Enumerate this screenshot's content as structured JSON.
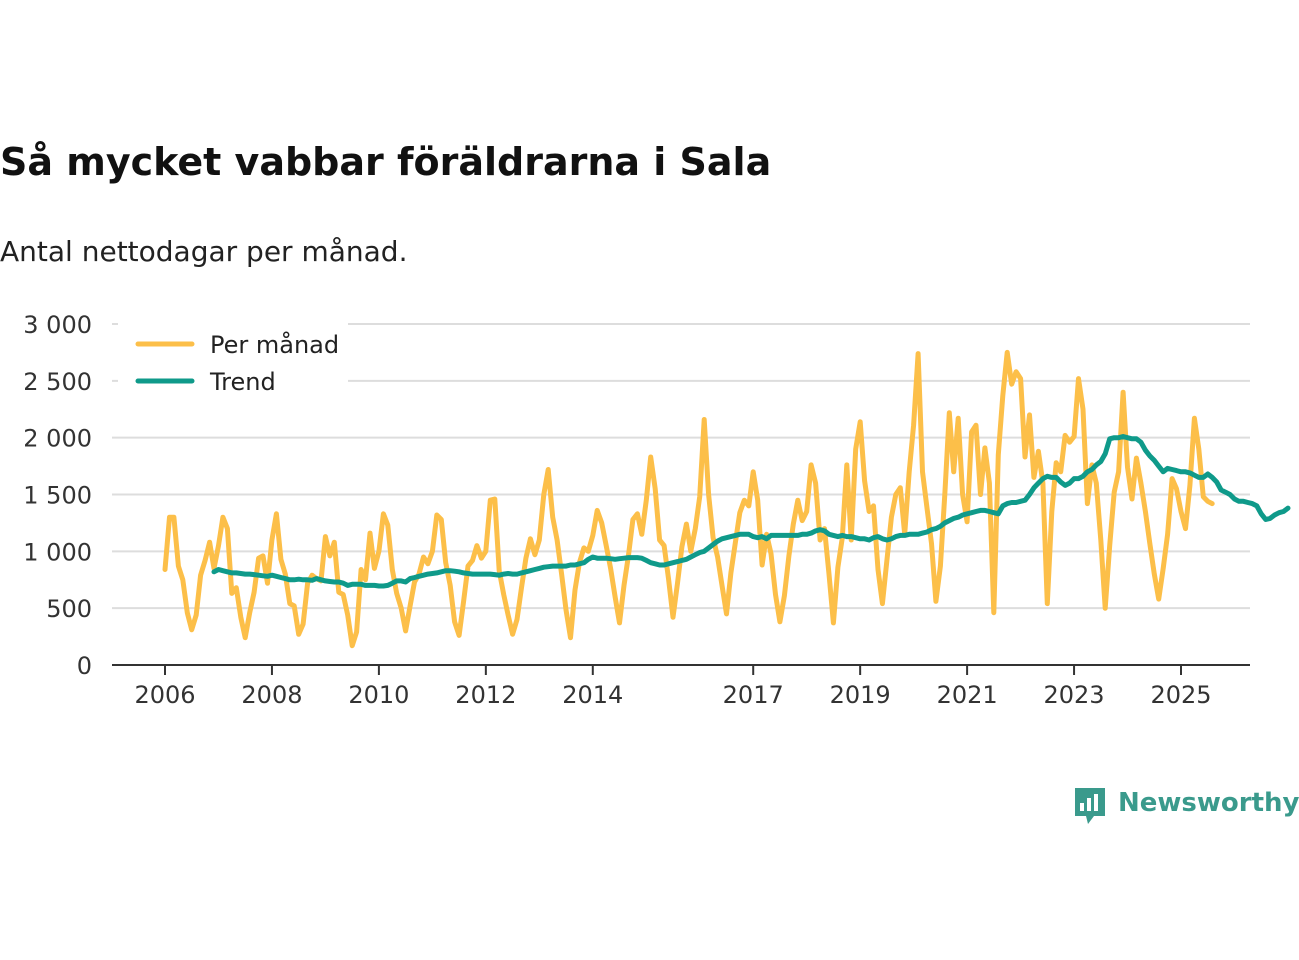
{
  "title": "Så mycket vabbar föräldrarna i Sala",
  "subtitle": "Antal nettodagar per månad.",
  "brand": {
    "name": "Newsworthy"
  },
  "colors": {
    "monthly": "#fcbf49",
    "trend": "#0f9a8a",
    "grid": "#dddddd",
    "axis": "#333333"
  },
  "chart_data": {
    "type": "line",
    "title": "Så mycket vabbar föräldrarna i Sala",
    "subtitle": "Antal nettodagar per månad.",
    "xlabel": "",
    "ylabel": "",
    "xlim": [
      2006.0,
      2025.5
    ],
    "ylim": [
      0,
      3000
    ],
    "x_ticks": [
      2006,
      2008,
      2010,
      2012,
      2014,
      2017,
      2019,
      2021,
      2023,
      2025
    ],
    "y_ticks": [
      {
        "value": 0,
        "label": "0"
      },
      {
        "value": 500,
        "label": "500"
      },
      {
        "value": 1000,
        "label": "1 000"
      },
      {
        "value": 1500,
        "label": "1 500"
      },
      {
        "value": 2000,
        "label": "2 000"
      },
      {
        "value": 2500,
        "label": "2 500"
      },
      {
        "value": 3000,
        "label": "3 000"
      }
    ],
    "legend": {
      "position": "top-left",
      "entries": [
        "Per månad",
        "Trend"
      ]
    },
    "series": [
      {
        "name": "Per månad",
        "start": 2006.0,
        "step_months": 1,
        "values": [
          840,
          1300,
          1300,
          870,
          750,
          460,
          310,
          440,
          790,
          920,
          1080,
          850,
          1050,
          1300,
          1200,
          630,
          680,
          420,
          240,
          460,
          640,
          940,
          960,
          720,
          1100,
          1330,
          930,
          800,
          540,
          520,
          270,
          360,
          720,
          790,
          760,
          740,
          1130,
          960,
          1080,
          640,
          620,
          440,
          170,
          290,
          840,
          750,
          1160,
          850,
          1000,
          1330,
          1230,
          840,
          630,
          500,
          300,
          520,
          730,
          800,
          950,
          890,
          1000,
          1320,
          1280,
          900,
          700,
          380,
          260,
          560,
          870,
          920,
          1050,
          940,
          1000,
          1450,
          1460,
          830,
          620,
          440,
          270,
          400,
          680,
          940,
          1110,
          970,
          1100,
          1500,
          1720,
          1300,
          1100,
          800,
          480,
          240,
          660,
          900,
          1030,
          1000,
          1140,
          1360,
          1250,
          1050,
          850,
          600,
          370,
          700,
          960,
          1280,
          1330,
          1150,
          1450,
          1830,
          1550,
          1100,
          1050,
          760,
          420,
          720,
          1040,
          1240,
          1000,
          1200,
          1480,
          2160,
          1500,
          1120,
          950,
          700,
          450,
          810,
          1080,
          1340,
          1450,
          1400,
          1700,
          1450,
          880,
          1150,
          980,
          620,
          380,
          610,
          960,
          1240,
          1450,
          1270,
          1350,
          1760,
          1600,
          1100,
          1200,
          800,
          370,
          860,
          1120,
          1760,
          1100,
          1900,
          2140,
          1620,
          1350,
          1400,
          840,
          540,
          920,
          1300,
          1500,
          1560,
          1150,
          1700,
          2110,
          2740,
          1700,
          1380,
          1070,
          560,
          870,
          1500,
          2220,
          1700,
          2170,
          1500,
          1260,
          2050,
          2110,
          1500,
          1910,
          1600,
          460,
          1850,
          2370,
          2750,
          2470,
          2580,
          2520,
          1830,
          2200,
          1650,
          1880,
          1600,
          540,
          1350,
          1780,
          1700,
          2020,
          1960,
          2010,
          2520,
          2250,
          1420,
          1760,
          1600,
          1100,
          500,
          1050,
          1520,
          1700,
          2400,
          1740,
          1460,
          1820,
          1600,
          1350,
          1070,
          800,
          580,
          850,
          1150,
          1640,
          1550,
          1350,
          1200,
          1580,
          2170,
          1900,
          1480,
          1440,
          1420
        ]
      },
      {
        "name": "Trend",
        "start": 2006.917,
        "step_months": 1,
        "values": [
          820,
          840,
          830,
          820,
          810,
          810,
          805,
          800,
          800,
          795,
          790,
          785,
          780,
          790,
          780,
          770,
          760,
          750,
          750,
          755,
          750,
          750,
          745,
          760,
          750,
          740,
          735,
          730,
          730,
          720,
          700,
          710,
          710,
          710,
          700,
          700,
          700,
          695,
          695,
          700,
          720,
          740,
          740,
          730,
          760,
          770,
          780,
          790,
          800,
          805,
          810,
          820,
          830,
          830,
          825,
          820,
          810,
          805,
          800,
          800,
          800,
          800,
          800,
          795,
          790,
          800,
          805,
          800,
          800,
          810,
          820,
          830,
          840,
          850,
          860,
          865,
          870,
          870,
          870,
          870,
          880,
          880,
          890,
          900,
          930,
          950,
          940,
          940,
          940,
          935,
          930,
          935,
          940,
          945,
          945,
          945,
          940,
          920,
          900,
          890,
          880,
          880,
          890,
          900,
          910,
          920,
          930,
          950,
          970,
          990,
          1000,
          1030,
          1060,
          1090,
          1110,
          1120,
          1130,
          1140,
          1150,
          1150,
          1150,
          1130,
          1120,
          1130,
          1110,
          1140,
          1140,
          1140,
          1140,
          1140,
          1140,
          1140,
          1150,
          1150,
          1160,
          1180,
          1190,
          1180,
          1150,
          1140,
          1130,
          1140,
          1130,
          1130,
          1120,
          1110,
          1110,
          1100,
          1120,
          1130,
          1110,
          1100,
          1110,
          1130,
          1140,
          1140,
          1150,
          1150,
          1150,
          1160,
          1170,
          1190,
          1200,
          1220,
          1250,
          1270,
          1290,
          1300,
          1320,
          1330,
          1340,
          1350,
          1360,
          1360,
          1350,
          1340,
          1330,
          1400,
          1420,
          1430,
          1430,
          1440,
          1450,
          1500,
          1560,
          1600,
          1640,
          1660,
          1650,
          1650,
          1610,
          1580,
          1600,
          1640,
          1640,
          1660,
          1700,
          1720,
          1760,
          1790,
          1860,
          1990,
          2000,
          2000,
          2010,
          2000,
          1990,
          1990,
          1960,
          1890,
          1840,
          1800,
          1750,
          1700,
          1730,
          1720,
          1710,
          1700,
          1700,
          1690,
          1670,
          1650,
          1650,
          1680,
          1650,
          1610,
          1540,
          1520,
          1500,
          1460,
          1440,
          1440,
          1430,
          1420,
          1400,
          1330,
          1280,
          1290,
          1320,
          1340,
          1350,
          1380
        ]
      }
    ]
  }
}
